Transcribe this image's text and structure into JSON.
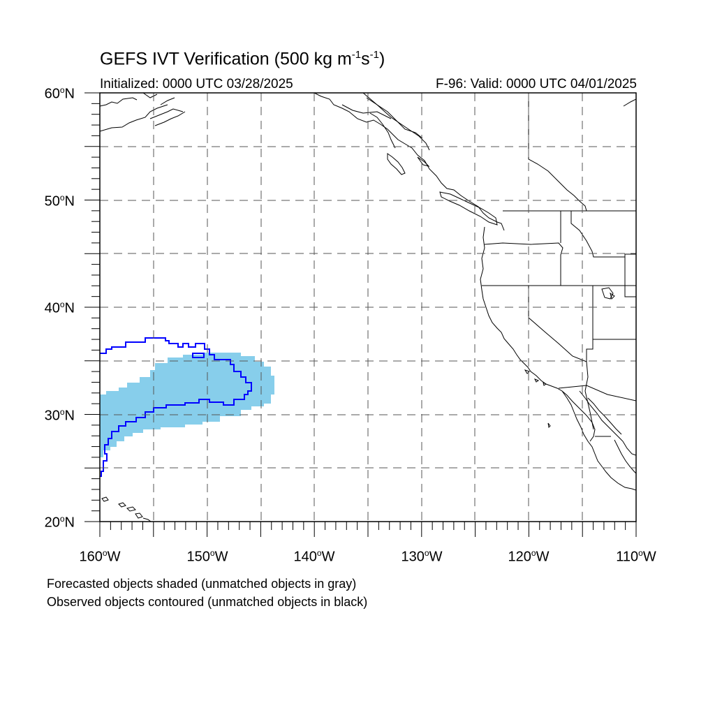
{
  "title": {
    "main": "GEFS IVT Verification (500 kg m",
    "exp1": "-1",
    "mid": "s",
    "exp2": "-1",
    "end": ")"
  },
  "initialized": "Initialized: 0000 UTC 03/28/2025",
  "valid": "F-96: Valid: 0000 UTC 04/01/2025",
  "lat_labels": [
    "60",
    "50",
    "40",
    "30",
    "20"
  ],
  "lat_suffix": "N",
  "lon_labels": [
    "160",
    "150",
    "140",
    "130",
    "120",
    "110"
  ],
  "lon_suffix": "W",
  "degree_symbol": "o",
  "footnotes": [
    "Forecasted objects shaded (unmatched objects in gray)",
    "Observed objects contoured (unmatched objects in black)"
  ],
  "colors": {
    "forecast_fill": "#87ceeb",
    "observed_contour": "#0000ff",
    "coastline": "#000000",
    "grid": "#555555"
  },
  "map_extent": {
    "lon_min": -160,
    "lon_max": -110,
    "lat_min": 20,
    "lat_max": 60
  }
}
